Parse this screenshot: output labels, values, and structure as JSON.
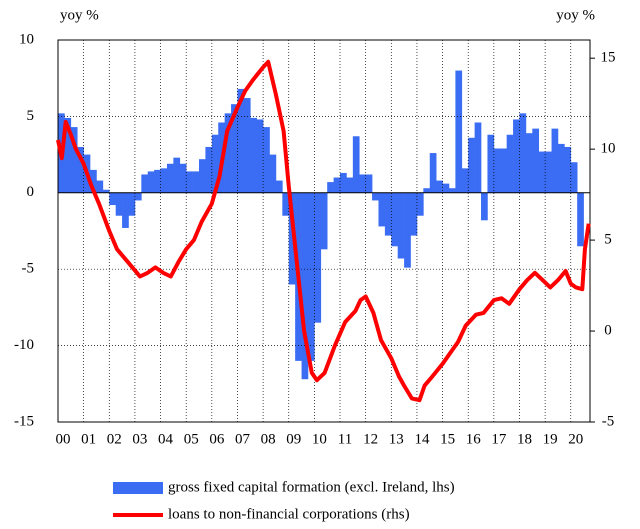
{
  "chart_data": {
    "type": "bar_line",
    "ylabel": "yoy %",
    "y2label": "yoy %",
    "xlim": [
      2000,
      2020.75
    ],
    "xticks": [
      {
        "value": 2000,
        "label": "00"
      },
      {
        "value": 2001,
        "label": "01"
      },
      {
        "value": 2002,
        "label": "02"
      },
      {
        "value": 2003,
        "label": "03"
      },
      {
        "value": 2004,
        "label": "04"
      },
      {
        "value": 2005,
        "label": "05"
      },
      {
        "value": 2006,
        "label": "06"
      },
      {
        "value": 2007,
        "label": "07"
      },
      {
        "value": 2008,
        "label": "08"
      },
      {
        "value": 2009,
        "label": "09"
      },
      {
        "value": 2010,
        "label": "10"
      },
      {
        "value": 2011,
        "label": "11"
      },
      {
        "value": 2012,
        "label": "12"
      },
      {
        "value": 2013,
        "label": "13"
      },
      {
        "value": 2014,
        "label": "14"
      },
      {
        "value": 2015,
        "label": "15"
      },
      {
        "value": 2016,
        "label": "16"
      },
      {
        "value": 2017,
        "label": "17"
      },
      {
        "value": 2018,
        "label": "18"
      },
      {
        "value": 2019,
        "label": "19"
      },
      {
        "value": 2020,
        "label": "20"
      }
    ],
    "ylim": [
      -15,
      10
    ],
    "yticks": [
      10,
      5,
      0,
      -5,
      -10,
      -15
    ],
    "y2lim": [
      -5,
      16
    ],
    "y2ticks": [
      15,
      10,
      5,
      0,
      -5
    ],
    "grid": true,
    "series": [
      {
        "name": "gross fixed capital formation (excl. Ireland, lhs)",
        "type": "bar",
        "color": "#3a6cf4",
        "bar_width": 0.25,
        "x": [
          2000,
          2000.25,
          2000.5,
          2000.75,
          2001,
          2001.25,
          2001.5,
          2001.75,
          2002,
          2002.25,
          2002.5,
          2002.75,
          2003,
          2003.25,
          2003.5,
          2003.75,
          2004,
          2004.25,
          2004.5,
          2004.75,
          2005,
          2005.25,
          2005.5,
          2005.75,
          2006,
          2006.25,
          2006.5,
          2006.75,
          2007,
          2007.25,
          2007.5,
          2007.75,
          2008,
          2008.25,
          2008.5,
          2008.75,
          2009,
          2009.25,
          2009.5,
          2009.75,
          2010,
          2010.25,
          2010.5,
          2010.75,
          2011,
          2011.25,
          2011.5,
          2011.75,
          2012,
          2012.25,
          2012.5,
          2012.75,
          2013,
          2013.25,
          2013.5,
          2013.75,
          2014,
          2014.25,
          2014.5,
          2014.75,
          2015,
          2015.25,
          2015.5,
          2015.75,
          2016,
          2016.25,
          2016.5,
          2016.75,
          2017,
          2017.25,
          2017.5,
          2017.75,
          2018,
          2018.25,
          2018.5,
          2018.75,
          2019,
          2019.25,
          2019.5,
          2019.75,
          2020,
          2020.25
        ],
        "values": [
          5.2,
          4.9,
          4.3,
          3.0,
          2.5,
          1.5,
          0.8,
          0.2,
          -0.8,
          -1.5,
          -2.3,
          -1.5,
          -0.5,
          1.2,
          1.4,
          1.5,
          1.6,
          1.9,
          2.3,
          1.9,
          1.4,
          1.4,
          2.2,
          3.0,
          3.8,
          4.6,
          5.2,
          5.8,
          6.8,
          6.2,
          4.9,
          4.8,
          4.3,
          2.5,
          0.8,
          -1.5,
          -6.0,
          -11.0,
          -12.2,
          -11.0,
          -8.5,
          -3.7,
          0.7,
          1.0,
          1.3,
          1.0,
          3.7,
          1.2,
          1.2,
          -0.5,
          -2.2,
          -2.8,
          -3.5,
          -4.3,
          -4.9,
          -2.8,
          -1.5,
          0.3,
          2.6,
          0.8,
          0.6,
          0.3,
          8.0,
          1.6,
          3.6,
          4.6,
          -1.8,
          3.8,
          2.9,
          2.9,
          3.8,
          4.8,
          5.2,
          3.9,
          4.2,
          2.7,
          2.7,
          4.2,
          3.2,
          3.0,
          2.0,
          -3.5
        ]
      },
      {
        "name": "loans to non-financial corporations (rhs)",
        "type": "line",
        "axis": "y2",
        "color": "#ff0000",
        "x": [
          2000.0,
          2000.15,
          2000.3,
          2000.5,
          2000.7,
          2001.0,
          2001.3,
          2001.6,
          2002.0,
          2002.3,
          2002.6,
          2002.9,
          2003.2,
          2003.5,
          2003.8,
          2004.1,
          2004.4,
          2004.7,
          2005.0,
          2005.3,
          2005.6,
          2006.0,
          2006.3,
          2006.6,
          2007.0,
          2007.3,
          2007.6,
          2008.0,
          2008.2,
          2008.5,
          2008.8,
          2009.0,
          2009.3,
          2009.6,
          2009.9,
          2010.1,
          2010.4,
          2010.8,
          2011.2,
          2011.6,
          2011.8,
          2012.0,
          2012.3,
          2012.6,
          2013.0,
          2013.3,
          2013.5,
          2013.8,
          2014.1,
          2014.3,
          2014.6,
          2015.0,
          2015.3,
          2015.6,
          2015.9,
          2016.3,
          2016.6,
          2017.0,
          2017.3,
          2017.6,
          2018.0,
          2018.3,
          2018.6,
          2018.9,
          2019.2,
          2019.5,
          2019.8,
          2020.0,
          2020.2,
          2020.45,
          2020.55,
          2020.7
        ],
        "values": [
          10.5,
          9.5,
          11.5,
          10.8,
          10.0,
          9.2,
          8.0,
          7.0,
          5.5,
          4.5,
          4.0,
          3.5,
          3.0,
          3.2,
          3.5,
          3.2,
          3.0,
          3.8,
          4.5,
          5.0,
          6.0,
          7.0,
          8.5,
          11.0,
          12.3,
          13.2,
          13.8,
          14.5,
          14.8,
          13.0,
          11.0,
          8.0,
          4.0,
          0.0,
          -2.3,
          -2.7,
          -2.3,
          -0.8,
          0.5,
          1.1,
          1.7,
          1.9,
          1.0,
          -0.5,
          -1.5,
          -2.5,
          -3.0,
          -3.7,
          -3.8,
          -3.0,
          -2.5,
          -1.8,
          -1.2,
          -0.6,
          0.3,
          0.9,
          1.0,
          1.7,
          1.8,
          1.5,
          2.3,
          2.8,
          3.2,
          2.8,
          2.4,
          2.8,
          3.3,
          2.6,
          2.4,
          2.3,
          4.5,
          5.9
        ]
      }
    ],
    "legend": "bottom"
  }
}
